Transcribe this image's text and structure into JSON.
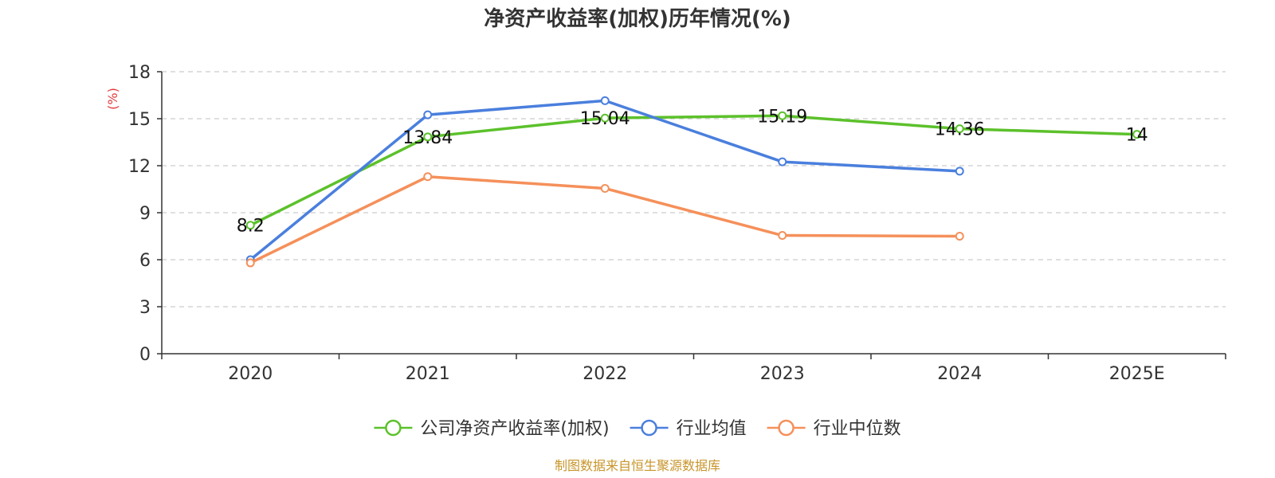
{
  "chart_data": {
    "type": "line",
    "title": "净资产收益率(加权)历年情况(%)",
    "ylabel": "(%)",
    "xlabel": "",
    "ylim": [
      0,
      18
    ],
    "yticks": [
      0,
      3,
      6,
      9,
      12,
      15,
      18
    ],
    "categories": [
      "2020",
      "2021",
      "2022",
      "2023",
      "2024",
      "2025E"
    ],
    "grid": true,
    "legend_position": "bottom",
    "series": [
      {
        "name": "公司净资产收益率(加权)",
        "color": "#5cc12b",
        "values": [
          8.2,
          13.84,
          15.04,
          15.19,
          14.36,
          14
        ],
        "labels": [
          "8.2",
          "13.84",
          "15.04",
          "15.19",
          "14.36",
          "14"
        ]
      },
      {
        "name": "行业均值",
        "color": "#4a7fdd",
        "values": [
          6.0,
          15.25,
          16.15,
          12.25,
          11.65,
          null
        ]
      },
      {
        "name": "行业中位数",
        "color": "#f5905a",
        "values": [
          5.8,
          11.3,
          10.55,
          7.55,
          7.5,
          null
        ]
      }
    ],
    "source": "制图数据来自恒生聚源数据库"
  }
}
